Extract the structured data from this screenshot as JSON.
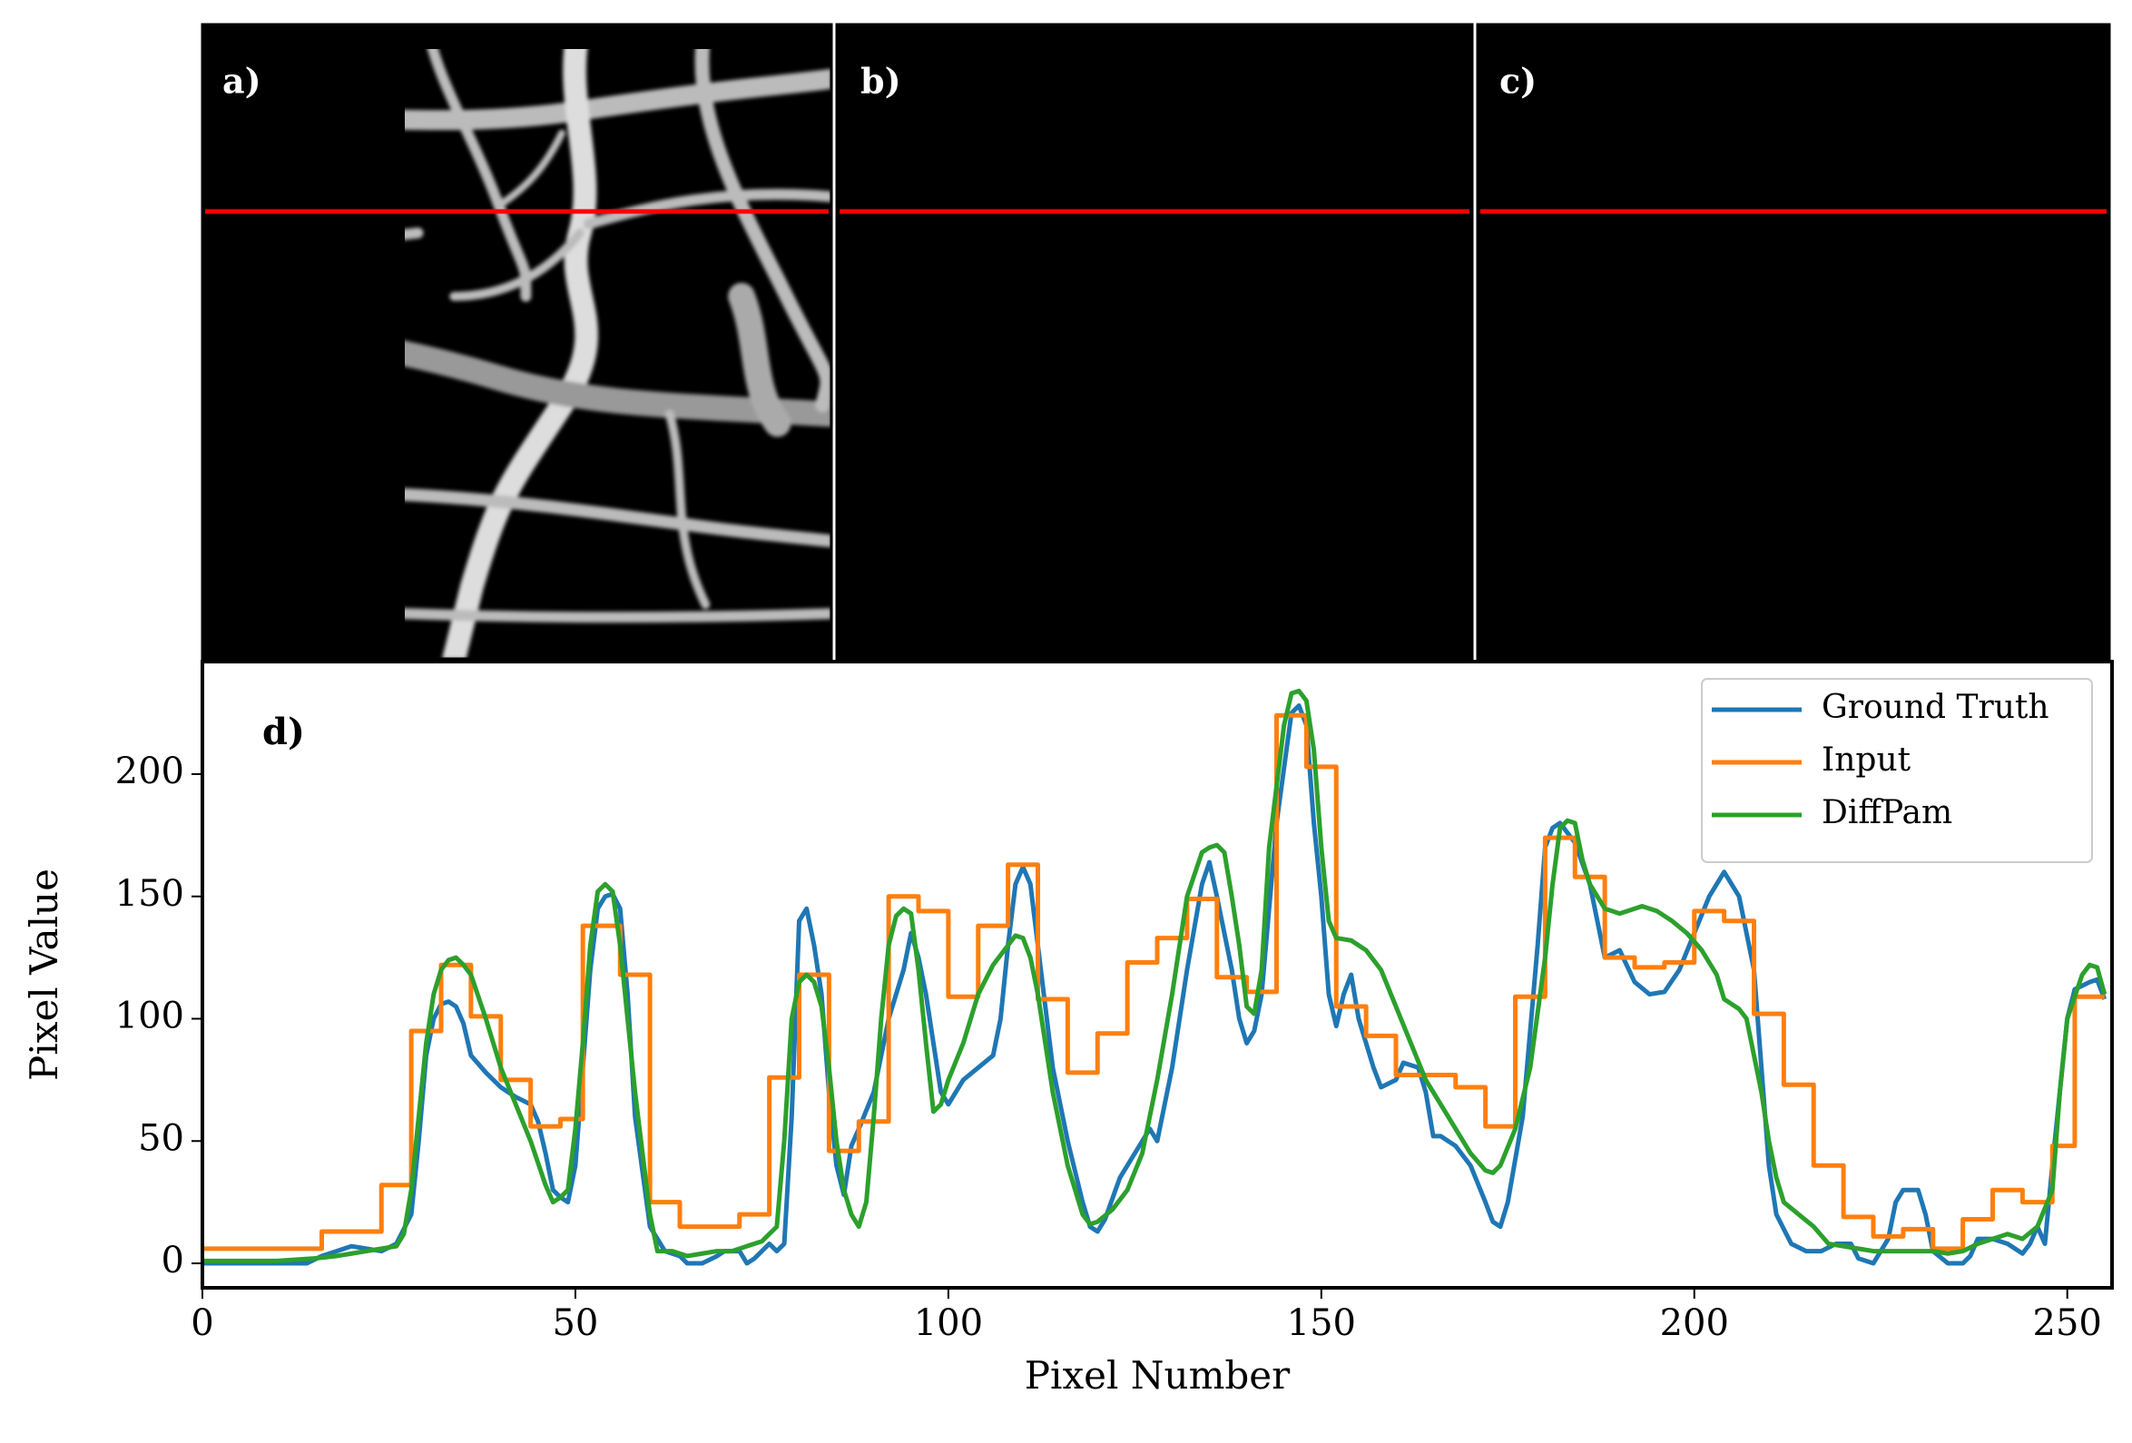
{
  "panels": [
    "a)",
    "b)",
    "c)"
  ],
  "chart_data": {
    "type": "line",
    "annotation": "d)",
    "xlabel": "Pixel Number",
    "ylabel": "Pixel Value",
    "xlim": [
      0,
      256
    ],
    "ylim": [
      -10,
      246
    ],
    "xticks": [
      0,
      50,
      100,
      150,
      200,
      250
    ],
    "yticks": [
      0,
      50,
      100,
      150,
      200
    ],
    "legend": "upper right",
    "series": [
      {
        "name": "Ground Truth",
        "color": "#1f77b4",
        "drawstyle": "line",
        "x": [
          0,
          5,
          10,
          14,
          16,
          18,
          20,
          22,
          24,
          26,
          28,
          29,
          30,
          31,
          32,
          33,
          34,
          35,
          36,
          38,
          40,
          42,
          44,
          45,
          46,
          47,
          48,
          49,
          50,
          51,
          52,
          53,
          54,
          55,
          56,
          57,
          58,
          60,
          62,
          64,
          65,
          67,
          69,
          70,
          72,
          73,
          74,
          76,
          77,
          78,
          79,
          80,
          81,
          82,
          83,
          84,
          85,
          86,
          87,
          88,
          90,
          92,
          94,
          95,
          96,
          97,
          98,
          99,
          100,
          102,
          104,
          106,
          107,
          108,
          109,
          110,
          111,
          112,
          114,
          116,
          118,
          119,
          120,
          121,
          123,
          125,
          127,
          128,
          130,
          132,
          134,
          135,
          136,
          138,
          139,
          140,
          141,
          142,
          144,
          146,
          147,
          148,
          149,
          150,
          151,
          152,
          153,
          154,
          155,
          157,
          158,
          160,
          161,
          163,
          164,
          165,
          166,
          168,
          170,
          172,
          173,
          174,
          175,
          177,
          179,
          180,
          181,
          182,
          184,
          186,
          188,
          190,
          192,
          194,
          196,
          198,
          200,
          202,
          204,
          206,
          208,
          209,
          210,
          211,
          213,
          215,
          217,
          219,
          221,
          222,
          224,
          226,
          227,
          228,
          230,
          231,
          232,
          234,
          236,
          237,
          238,
          240,
          242,
          244,
          245,
          246,
          247,
          248,
          250,
          251,
          253,
          254,
          255
        ],
        "values": [
          0,
          0,
          0,
          0,
          3,
          5,
          7,
          6,
          5,
          8,
          20,
          50,
          85,
          100,
          106,
          107,
          105,
          98,
          85,
          78,
          72,
          68,
          65,
          58,
          45,
          30,
          27,
          25,
          40,
          80,
          120,
          145,
          150,
          151,
          145,
          110,
          60,
          15,
          5,
          3,
          0,
          0,
          3,
          5,
          5,
          0,
          2,
          8,
          5,
          8,
          60,
          140,
          145,
          130,
          110,
          70,
          40,
          28,
          48,
          55,
          70,
          100,
          120,
          135,
          125,
          110,
          90,
          70,
          65,
          75,
          80,
          85,
          100,
          130,
          155,
          162,
          155,
          130,
          80,
          50,
          25,
          15,
          13,
          18,
          35,
          45,
          55,
          50,
          80,
          120,
          155,
          164,
          150,
          120,
          100,
          90,
          95,
          110,
          180,
          225,
          228,
          220,
          180,
          150,
          110,
          97,
          110,
          118,
          100,
          80,
          72,
          75,
          82,
          80,
          70,
          52,
          52,
          48,
          40,
          25,
          17,
          15,
          25,
          60,
          130,
          170,
          178,
          180,
          172,
          155,
          125,
          128,
          115,
          110,
          111,
          120,
          135,
          150,
          160,
          150,
          120,
          80,
          40,
          20,
          8,
          5,
          5,
          8,
          8,
          2,
          0,
          10,
          25,
          30,
          30,
          20,
          5,
          0,
          0,
          3,
          10,
          10,
          8,
          4,
          8,
          15,
          8,
          40,
          100,
          112,
          115,
          116,
          108
        ]
      },
      {
        "name": "Input",
        "color": "#ff7f0e",
        "drawstyle": "steps-post",
        "x": [
          0,
          16,
          24,
          28,
          32,
          36,
          40,
          44,
          48,
          51,
          56,
          60,
          64,
          72,
          76,
          80,
          84,
          88,
          92,
          96,
          100,
          104,
          108,
          112,
          116,
          120,
          124,
          128,
          132,
          136,
          140,
          144,
          148,
          152,
          156,
          160,
          168,
          172,
          176,
          180,
          184,
          188,
          192,
          196,
          200,
          204,
          208,
          212,
          216,
          220,
          224,
          228,
          232,
          236,
          240,
          244,
          248,
          251,
          255
        ],
        "values": [
          6,
          13,
          32,
          95,
          122,
          101,
          75,
          56,
          59,
          138,
          118,
          25,
          15,
          20,
          76,
          118,
          46,
          58,
          150,
          144,
          109,
          138,
          163,
          108,
          78,
          94,
          123,
          133,
          149,
          117,
          111,
          224,
          203,
          105,
          93,
          77,
          72,
          56,
          109,
          174,
          158,
          125,
          121,
          123,
          144,
          140,
          102,
          73,
          40,
          19,
          11,
          14,
          6,
          18,
          30,
          25,
          48,
          109,
          109
        ]
      },
      {
        "name": "DiffPam",
        "color": "#2ca02c",
        "drawstyle": "line",
        "x": [
          0,
          10,
          15,
          18,
          20,
          22,
          24,
          26,
          27,
          28,
          29,
          30,
          31,
          32,
          33,
          34,
          35,
          36,
          38,
          40,
          42,
          44,
          46,
          47,
          48,
          49,
          50,
          51,
          52,
          53,
          54,
          55,
          56,
          57,
          58,
          60,
          61,
          63,
          65,
          67,
          69,
          71,
          73,
          75,
          77,
          78,
          79,
          80,
          81,
          82,
          83,
          84,
          85,
          86,
          87,
          88,
          89,
          90,
          91,
          92,
          93,
          94,
          95,
          96,
          97,
          98,
          99,
          100,
          102,
          104,
          106,
          108,
          109,
          110,
          111,
          112,
          114,
          116,
          118,
          119,
          120,
          122,
          124,
          126,
          128,
          130,
          132,
          134,
          135,
          136,
          137,
          138,
          139,
          140,
          141,
          142,
          143,
          145,
          146,
          147,
          148,
          149,
          150,
          151,
          152,
          154,
          156,
          158,
          160,
          162,
          164,
          166,
          168,
          170,
          172,
          173,
          174,
          176,
          178,
          180,
          181,
          182,
          183,
          184,
          185,
          186,
          188,
          190,
          192,
          193,
          195,
          197,
          199,
          201,
          203,
          204,
          206,
          207,
          209,
          210,
          211,
          212,
          214,
          216,
          218,
          220,
          222,
          224,
          226,
          228,
          232,
          234,
          236,
          238,
          240,
          242,
          244,
          246,
          248,
          249,
          250,
          252,
          253,
          254,
          255
        ],
        "values": [
          1,
          1,
          2,
          3,
          4,
          5,
          6,
          7,
          12,
          30,
          60,
          90,
          110,
          120,
          124,
          125,
          122,
          118,
          100,
          80,
          65,
          50,
          32,
          25,
          27,
          30,
          55,
          90,
          130,
          152,
          155,
          152,
          130,
          100,
          70,
          20,
          5,
          5,
          3,
          4,
          5,
          5,
          7,
          9,
          15,
          50,
          100,
          115,
          118,
          115,
          105,
          80,
          50,
          30,
          20,
          15,
          25,
          60,
          100,
          130,
          142,
          145,
          143,
          120,
          90,
          62,
          65,
          75,
          90,
          110,
          122,
          130,
          134,
          133,
          125,
          110,
          70,
          40,
          20,
          16,
          17,
          22,
          30,
          45,
          75,
          110,
          150,
          168,
          170,
          171,
          168,
          150,
          130,
          105,
          102,
          120,
          170,
          220,
          233,
          234,
          230,
          210,
          170,
          140,
          133,
          132,
          128,
          120,
          105,
          90,
          75,
          65,
          55,
          45,
          38,
          37,
          40,
          55,
          80,
          125,
          155,
          178,
          181,
          180,
          165,
          155,
          145,
          143,
          145,
          146,
          144,
          140,
          135,
          128,
          118,
          108,
          104,
          100,
          70,
          50,
          35,
          25,
          20,
          15,
          8,
          7,
          6,
          5,
          5,
          5,
          5,
          4,
          5,
          8,
          10,
          12,
          10,
          15,
          30,
          70,
          100,
          118,
          122,
          121,
          110
        ]
      }
    ]
  }
}
